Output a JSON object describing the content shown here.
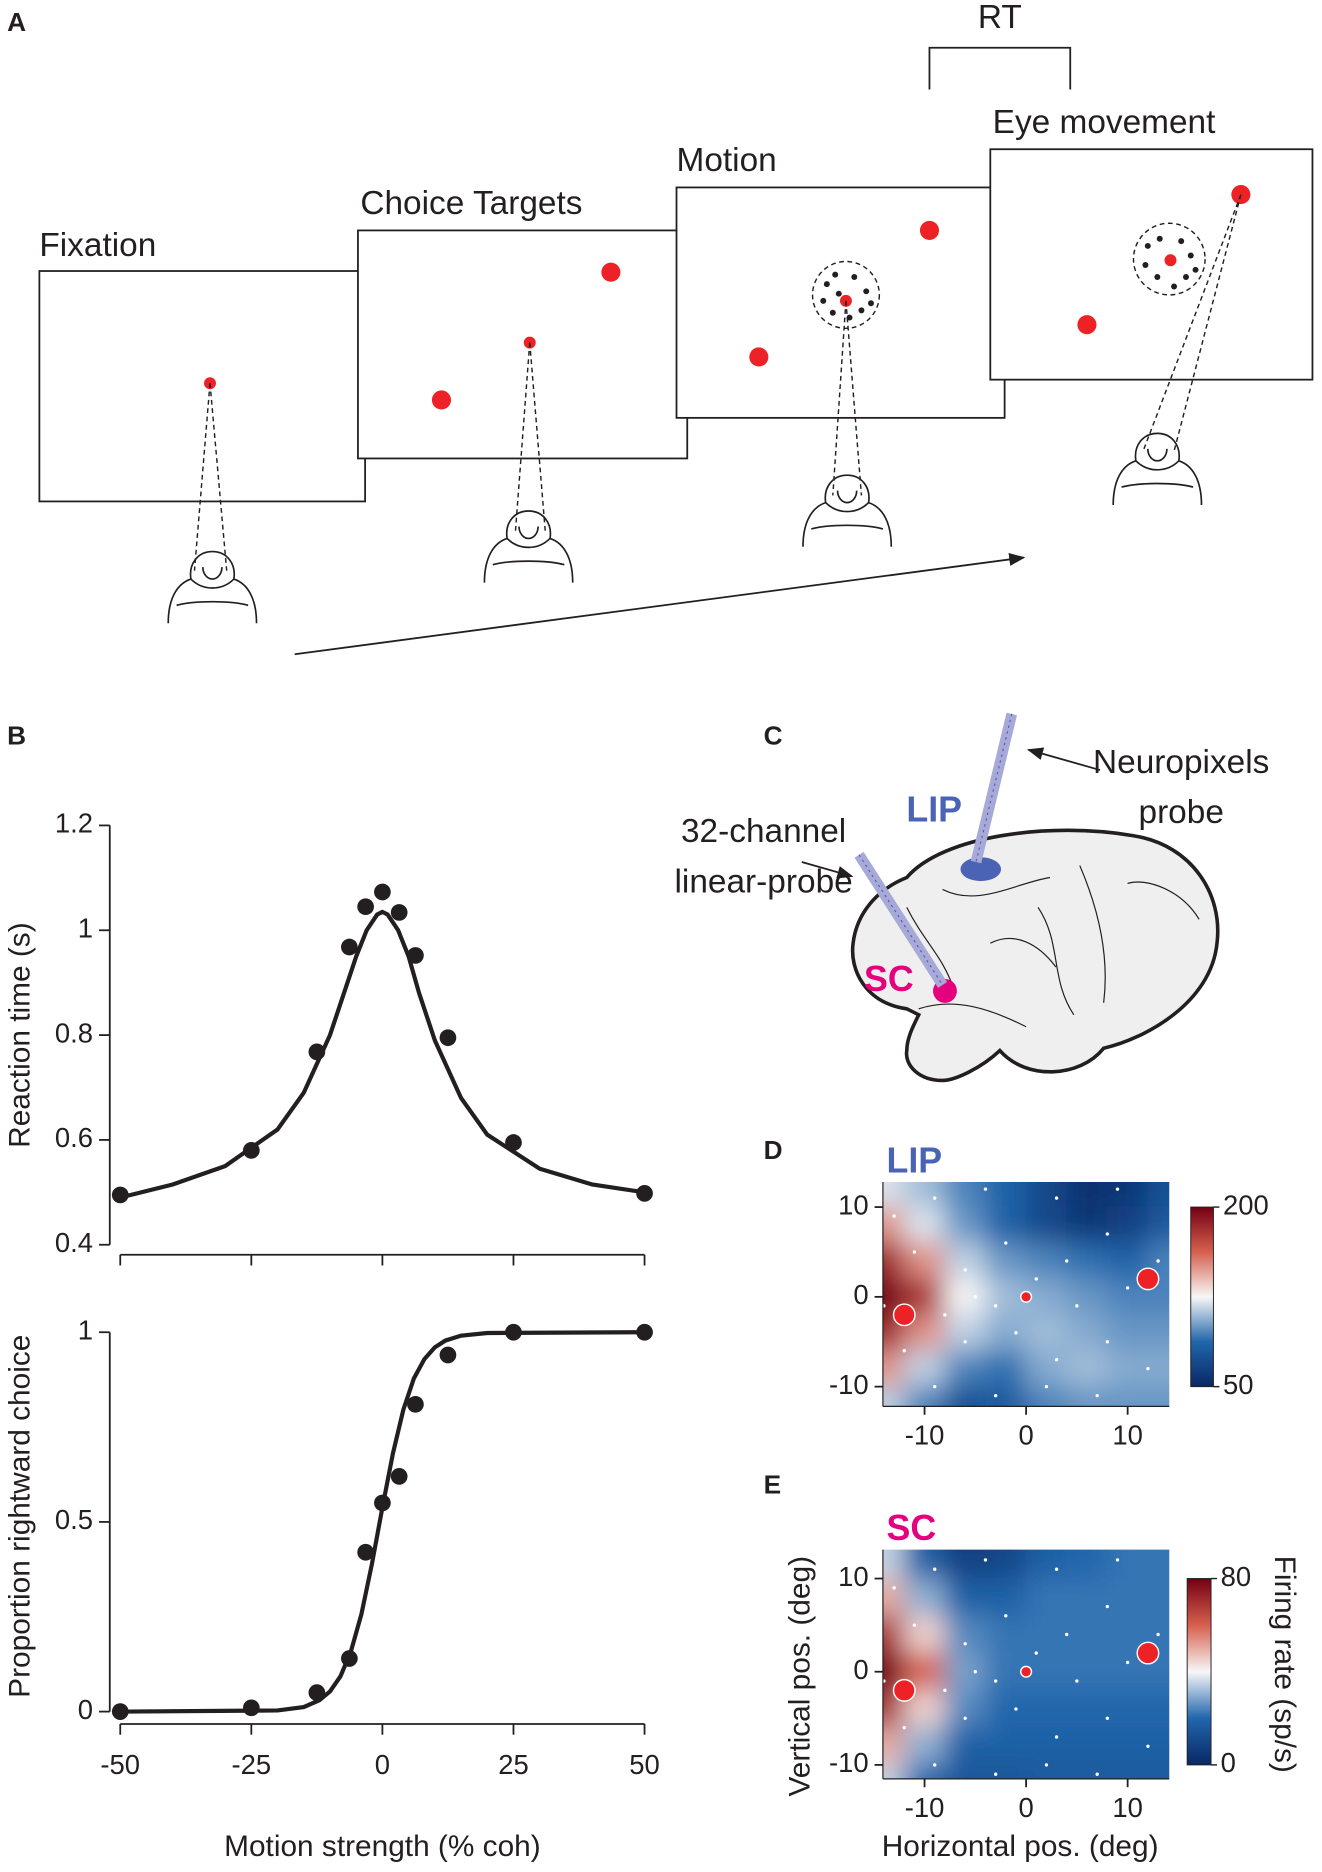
{
  "diagram": {
    "panel_labels": [
      "A",
      "B",
      "C",
      "D",
      "E"
    ],
    "task": {
      "rt": "RT",
      "steps": [
        "Fixation",
        "Choice Targets",
        "Motion",
        "Eye movement"
      ]
    },
    "brain": {
      "lip": "LIP",
      "sc": "SC",
      "neuropixels": [
        "Neuropixels",
        "probe"
      ],
      "linear_probe": [
        "32-channel",
        "linear-probe"
      ]
    }
  },
  "chart_data": [
    {
      "type": "line",
      "ylabel": "Reaction time (s)",
      "color": "#231f20",
      "xlim": [
        -52,
        52
      ],
      "ylim": [
        0.39,
        1.21
      ],
      "xticks": [
        -50,
        -25,
        0,
        25,
        50
      ],
      "yticks": [
        0.4,
        0.6,
        0.8,
        1,
        1.2
      ],
      "points": {
        "x": [
          -50,
          -25,
          -12.5,
          -6.3,
          -3.2,
          0,
          3.2,
          6.3,
          12.5,
          25,
          50
        ],
        "y": [
          0.495,
          0.58,
          0.768,
          0.968,
          1.045,
          1.073,
          1.034,
          0.952,
          0.795,
          0.595,
          0.498
        ]
      },
      "fit": {
        "x": [
          -50,
          -40,
          -30,
          -20,
          -15,
          -10,
          -7,
          -5,
          -3,
          -1,
          0,
          1,
          3,
          5,
          7,
          10,
          15,
          20,
          30,
          40,
          50
        ],
        "y": [
          0.49,
          0.515,
          0.55,
          0.62,
          0.69,
          0.8,
          0.89,
          0.95,
          1.0,
          1.03,
          1.035,
          1.03,
          1.0,
          0.95,
          0.88,
          0.79,
          0.68,
          0.61,
          0.545,
          0.515,
          0.5
        ]
      }
    },
    {
      "type": "line",
      "ylabel": "Proportion rightward choice",
      "xlabel": "Motion strength (% coh)",
      "color": "#231f20",
      "xlim": [
        -52,
        52
      ],
      "ylim": [
        -0.02,
        1.05
      ],
      "xticks": [
        -50,
        -25,
        0,
        25,
        50
      ],
      "yticks": [
        0,
        0.5,
        1
      ],
      "points": {
        "x": [
          -50,
          -25,
          -12.5,
          -6.3,
          -3.2,
          0,
          3.2,
          6.3,
          12.5,
          25,
          50
        ],
        "y": [
          0,
          0.01,
          0.05,
          0.14,
          0.42,
          0.55,
          0.62,
          0.81,
          0.94,
          1,
          1
        ]
      },
      "fit": {
        "x": [
          -50,
          -20,
          -15,
          -12,
          -10,
          -8,
          -6,
          -4,
          -2,
          0,
          2,
          4,
          6,
          8,
          10,
          12,
          15,
          20,
          50
        ],
        "y": [
          0,
          0.003,
          0.012,
          0.03,
          0.053,
          0.093,
          0.159,
          0.257,
          0.389,
          0.538,
          0.68,
          0.796,
          0.878,
          0.929,
          0.96,
          0.978,
          0.991,
          0.998,
          1
        ]
      }
    },
    {
      "type": "heatmap",
      "title": "LIP",
      "title_color": "#4b63b4",
      "xlim": [
        -14.1,
        14.1
      ],
      "ylim": [
        -12.2,
        12.8
      ],
      "xticks": [
        -10,
        0,
        10
      ],
      "yticks": [
        -10,
        0,
        10
      ],
      "x": [
        -14,
        -10,
        -6,
        -2,
        2,
        6,
        10,
        14
      ],
      "y": [
        12,
        8,
        4,
        0,
        -4,
        -8,
        -12
      ],
      "z": [
        [
          120,
          110,
          95,
          85,
          70,
          55,
          60,
          75
        ],
        [
          150,
          120,
          100,
          85,
          70,
          60,
          65,
          80
        ],
        [
          185,
          150,
          115,
          100,
          95,
          90,
          85,
          95
        ],
        [
          200,
          180,
          125,
          110,
          105,
          100,
          95,
          95
        ],
        [
          185,
          150,
          115,
          105,
          110,
          105,
          100,
          100
        ],
        [
          150,
          115,
          95,
          90,
          105,
          110,
          105,
          105
        ],
        [
          115,
          95,
          75,
          80,
          95,
          100,
          100,
          100
        ]
      ],
      "clim": [
        50,
        200
      ],
      "cticks": [
        50,
        200
      ],
      "targets": {
        "x": [
          -12,
          0,
          12
        ],
        "y": [
          -2,
          0,
          2
        ]
      }
    },
    {
      "type": "heatmap",
      "title": "SC",
      "title_color": "#e5007e",
      "xlabel": "Horizontal pos. (deg)",
      "ylabel": "Vertical pos. (deg)",
      "colorbar_label": "Firing rate (sp/s)",
      "xlim": [
        -14.1,
        14.1
      ],
      "ylim": [
        -11.5,
        13.1
      ],
      "xticks": [
        -10,
        0,
        10
      ],
      "yticks": [
        -10,
        0,
        10
      ],
      "x": [
        -14,
        -10,
        -6,
        -2,
        2,
        6,
        10,
        14
      ],
      "y": [
        12,
        8,
        4,
        0,
        -4,
        -8,
        -12
      ],
      "z": [
        [
          35,
          18,
          8,
          10,
          18,
          20,
          22,
          22
        ],
        [
          50,
          30,
          18,
          18,
          22,
          22,
          22,
          22
        ],
        [
          70,
          45,
          25,
          22,
          22,
          22,
          22,
          22
        ],
        [
          80,
          60,
          28,
          22,
          22,
          22,
          22,
          22
        ],
        [
          70,
          45,
          25,
          20,
          20,
          20,
          20,
          20
        ],
        [
          50,
          30,
          18,
          18,
          18,
          18,
          18,
          18
        ],
        [
          35,
          20,
          15,
          15,
          16,
          16,
          16,
          16
        ]
      ],
      "clim": [
        0,
        80
      ],
      "cticks": [
        0,
        80
      ],
      "targets": {
        "x": [
          -12,
          0,
          12
        ],
        "y": [
          -2,
          0,
          2
        ]
      }
    }
  ]
}
